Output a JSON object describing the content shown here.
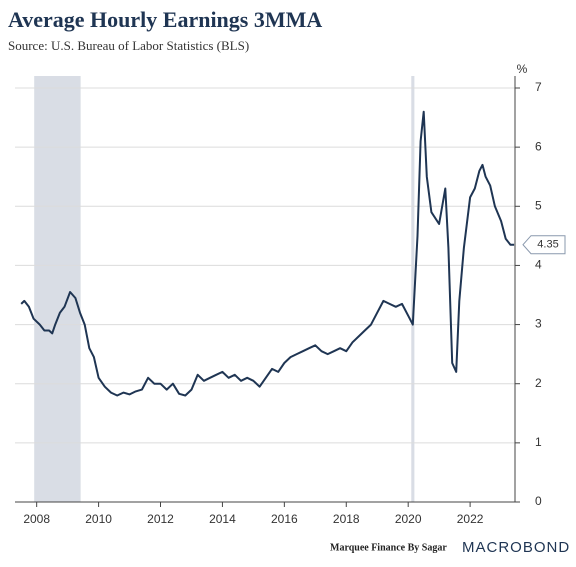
{
  "chart_data": {
    "type": "line",
    "title": "Average Hourly Earnings 3MMA",
    "subtitle": "Source: U.S. Bureau of Labor Statistics (BLS)",
    "y_unit": "%",
    "footer_left": "Marquee Finance By Sagar",
    "footer_right": "MACROBOND",
    "color": "#1f3553",
    "shade_color": "#d9dde5",
    "shaded_ranges": [
      [
        2007.92,
        2009.42
      ],
      [
        2020.1,
        2020.2
      ]
    ],
    "x": [
      2007.5,
      2007.6,
      2007.75,
      2007.9,
      2008.1,
      2008.25,
      2008.4,
      2008.5,
      2008.6,
      2008.75,
      2008.9,
      2009.08,
      2009.25,
      2009.4,
      2009.55,
      2009.7,
      2009.85,
      2010.0,
      2010.2,
      2010.4,
      2010.6,
      2010.8,
      2011.0,
      2011.2,
      2011.4,
      2011.6,
      2011.8,
      2012.0,
      2012.2,
      2012.4,
      2012.6,
      2012.8,
      2013.0,
      2013.2,
      2013.4,
      2013.6,
      2013.8,
      2014.0,
      2014.2,
      2014.4,
      2014.6,
      2014.8,
      2015.0,
      2015.2,
      2015.4,
      2015.6,
      2015.8,
      2016.0,
      2016.2,
      2016.4,
      2016.6,
      2016.8,
      2017.0,
      2017.2,
      2017.4,
      2017.6,
      2017.8,
      2018.0,
      2018.2,
      2018.4,
      2018.6,
      2018.8,
      2019.0,
      2019.2,
      2019.4,
      2019.6,
      2019.8,
      2020.0,
      2020.15,
      2020.3,
      2020.4,
      2020.5,
      2020.6,
      2020.75,
      2021.0,
      2021.2,
      2021.3,
      2021.42,
      2021.55,
      2021.65,
      2021.8,
      2022.0,
      2022.15,
      2022.3,
      2022.4,
      2022.5,
      2022.65,
      2022.8,
      2023.0,
      2023.15,
      2023.3,
      2023.42
    ],
    "values": [
      3.35,
      3.4,
      3.3,
      3.1,
      3.0,
      2.9,
      2.9,
      2.85,
      3.0,
      3.2,
      3.3,
      3.55,
      3.45,
      3.2,
      3.0,
      2.6,
      2.45,
      2.1,
      1.95,
      1.85,
      1.8,
      1.85,
      1.82,
      1.87,
      1.9,
      2.1,
      2.0,
      2.0,
      1.9,
      2.0,
      1.83,
      1.8,
      1.9,
      2.15,
      2.05,
      2.1,
      2.15,
      2.2,
      2.1,
      2.15,
      2.05,
      2.1,
      2.05,
      1.95,
      2.1,
      2.25,
      2.2,
      2.35,
      2.45,
      2.5,
      2.55,
      2.6,
      2.65,
      2.55,
      2.5,
      2.55,
      2.6,
      2.55,
      2.7,
      2.8,
      2.9,
      3.0,
      3.2,
      3.4,
      3.35,
      3.3,
      3.35,
      3.15,
      3.0,
      4.5,
      6.1,
      6.6,
      5.5,
      4.9,
      4.7,
      5.3,
      4.3,
      2.35,
      2.2,
      3.4,
      4.3,
      5.15,
      5.3,
      5.6,
      5.7,
      5.5,
      5.35,
      5.0,
      4.75,
      4.45,
      4.35,
      4.35
    ],
    "xlim": [
      2007.3,
      2023.45
    ],
    "xticks": [
      2008,
      2010,
      2012,
      2014,
      2016,
      2018,
      2020,
      2022
    ],
    "ylim": [
      0,
      7
    ],
    "yticks": [
      0,
      1,
      2,
      3,
      4,
      5,
      6,
      7
    ],
    "grid": true
  }
}
